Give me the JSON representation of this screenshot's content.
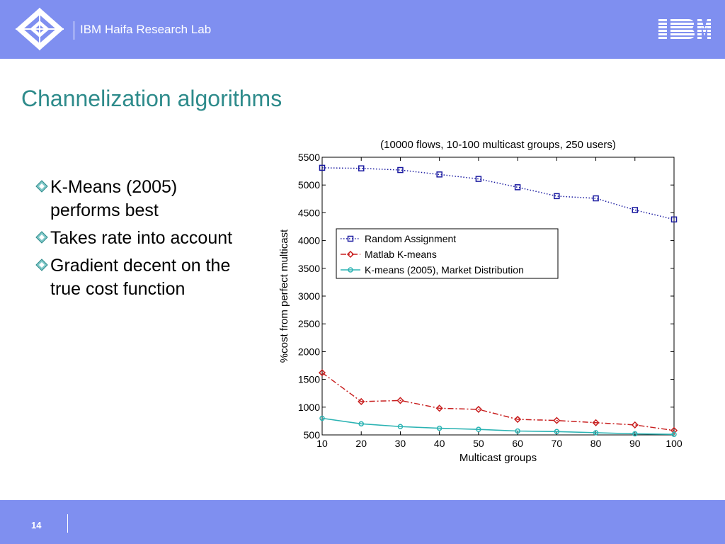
{
  "header": {
    "lab_name": "IBM Haifa Research Lab",
    "logo_icon": "haifa-diamond-logo",
    "brand_icon": "ibm-striped-logo",
    "background": "#7f8ff0"
  },
  "slide": {
    "title": "Channelization algorithms",
    "title_color": "#2e8b8b",
    "bullets": [
      {
        "text": "K-Means (2005)"
      },
      {
        "text": "performs best"
      },
      {
        "text": "Takes rate into account"
      },
      {
        "text": "Gradient decent on the"
      },
      {
        "text": "true cost function"
      }
    ]
  },
  "footer": {
    "page_number": "14"
  },
  "chart_data": {
    "type": "line",
    "title": "(10000 flows, 10-100 multicast groups, 250 users)",
    "xlabel": "Multicast groups",
    "ylabel": "%cost from perfect multicast",
    "xlim": [
      10,
      100
    ],
    "ylim": [
      500,
      5500
    ],
    "xticks": [
      10,
      20,
      30,
      40,
      50,
      60,
      70,
      80,
      90,
      100
    ],
    "yticks": [
      500,
      1000,
      1500,
      2000,
      2500,
      3000,
      3500,
      4000,
      4500,
      5000,
      5500
    ],
    "grid": false,
    "legend_position": "center-left",
    "x": [
      10,
      20,
      30,
      40,
      50,
      60,
      70,
      80,
      90,
      100
    ],
    "series": [
      {
        "name": "Random Assignment",
        "color": "#1a1aa0",
        "marker": "square",
        "dash": "dotted",
        "values": [
          5310,
          5300,
          5270,
          5190,
          5110,
          4960,
          4800,
          4760,
          4550,
          4380
        ]
      },
      {
        "name": "Matlab K-means",
        "color": "#c81e1e",
        "marker": "diamond",
        "dash": "dashdot",
        "values": [
          1620,
          1100,
          1120,
          980,
          960,
          780,
          760,
          720,
          680,
          580
        ]
      },
      {
        "name": "K-means (2005), Market Distribution",
        "color": "#2bb3b3",
        "marker": "circle",
        "dash": "solid",
        "values": [
          800,
          700,
          650,
          620,
          600,
          570,
          560,
          540,
          520,
          510
        ]
      }
    ]
  }
}
